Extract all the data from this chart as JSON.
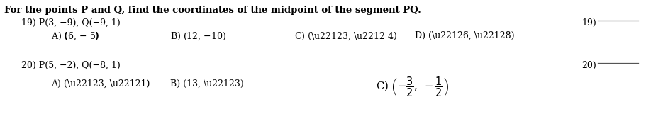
{
  "title": "For the points P and Q, find the coordinates of the midpoint of the segment PQ.",
  "q19_label": "19) P(3, −9), Q(−9, 1)",
  "q20_label": "20) P(5, −2), Q(−8, 1)",
  "q19_num": "19)",
  "q20_num": "20)",
  "bg_color": "#ffffff",
  "text_color": "#000000",
  "font_size_title": 9.5,
  "font_size_body": 9.0,
  "line_color": "#555555",
  "fig_width": 9.11,
  "fig_height": 1.85,
  "dpi": 100
}
